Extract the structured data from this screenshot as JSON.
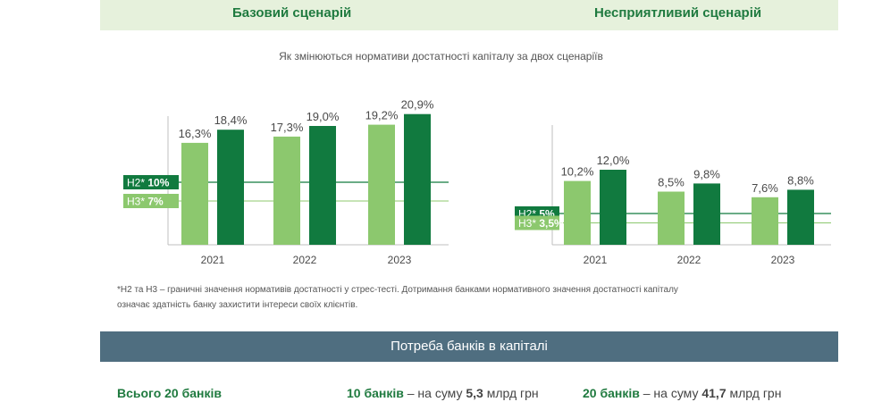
{
  "header": {
    "tab_base": "Базовий сценарій",
    "tab_adverse": "Несприятливий сценарій"
  },
  "subtitle": "Як змінюються нормативи достатності капіталу за двох сценаріїв",
  "colors": {
    "light": "#8cc86e",
    "dark": "#117a3f",
    "tab_bg": "#e6f1dc",
    "banner_bg": "#4f6e80"
  },
  "chart_data": [
    {
      "type": "bar",
      "categories": [
        "2021",
        "2022",
        "2023"
      ],
      "values_light": [
        16.3,
        17.3,
        19.2
      ],
      "values_dark": [
        18.4,
        19.0,
        20.9
      ],
      "labels_light": [
        "16,3%",
        "17,3%",
        "19,2%"
      ],
      "labels_dark": [
        "18,4%",
        "19,0%",
        "20,9%"
      ],
      "thresholds": [
        {
          "name": "Н2*",
          "value_label": "10%",
          "value": 10
        },
        {
          "name": "Н3*",
          "value_label": "7%",
          "value": 7
        }
      ],
      "ylim": [
        0,
        22
      ]
    },
    {
      "type": "bar",
      "categories": [
        "2021",
        "2022",
        "2023"
      ],
      "values_light": [
        10.2,
        8.5,
        7.6
      ],
      "values_dark": [
        12.0,
        9.8,
        8.8
      ],
      "labels_light": [
        "10,2%",
        "8,5%",
        "7,6%"
      ],
      "labels_dark": [
        "12,0%",
        "9,8%",
        "8,8%"
      ],
      "thresholds": [
        {
          "name": "Н2*",
          "value_label": "5%",
          "value": 5
        },
        {
          "name": "Н3*",
          "value_label": "3,5%",
          "value": 3.5
        }
      ],
      "ylim": [
        0,
        14
      ]
    }
  ],
  "footnote": {
    "line1": "*Н2 та Н3 – граничні значення нормативів достатності у стрес-тесті. Дотримання банками нормативного значення достатності капіталу",
    "line2": "означає здатність банку захистити інтереси своїх клієнтів."
  },
  "banner": "Потреба банків в капіталі",
  "summary": {
    "total": "Всього 20 банків",
    "base_banks": "10 банків",
    "base_text": " – на суму ",
    "base_amount": "5,3",
    "base_unit": " млрд грн",
    "adverse_banks": "20 банків",
    "adverse_text": " – на суму ",
    "adverse_amount": "41,7",
    "adverse_unit": " млрд грн"
  }
}
